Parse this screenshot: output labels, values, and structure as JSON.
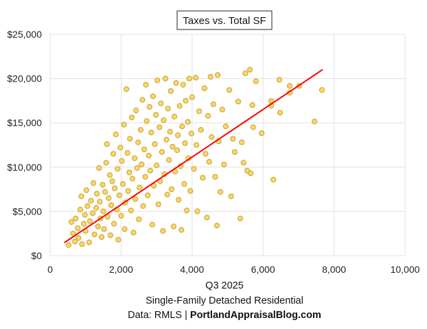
{
  "chart_data": {
    "type": "scatter",
    "title": "Taxes vs. Total SF",
    "footer": {
      "line1": "Q3 2025",
      "line2": "Single-Family Detached Residential",
      "line3_prefix": "Data: RMLS | ",
      "line3_bold": "PortlandAppraisalBlog.com"
    },
    "xlim": [
      0,
      10000
    ],
    "ylim": [
      0,
      25000
    ],
    "x_ticks": [
      0,
      2000,
      4000,
      6000,
      8000,
      10000
    ],
    "x_tick_labels": [
      "0",
      "2,000",
      "4,000",
      "6,000",
      "8,000",
      "10,000"
    ],
    "y_ticks": [
      0,
      5000,
      10000,
      15000,
      20000,
      25000
    ],
    "y_tick_labels": [
      "$0",
      "$5,000",
      "$10,000",
      "$15,000",
      "$20,000",
      "$25,000"
    ],
    "grid": true,
    "colors": {
      "marker_fill": "#f8d66f",
      "marker_stroke": "#c9a128",
      "trendline": "#ff0000",
      "grid": "#e0e0e0"
    },
    "trendline": {
      "type": "linear",
      "points": [
        [
          400,
          1470
        ],
        [
          7680,
          21020
        ]
      ]
    },
    "points": [
      [
        520,
        1200
      ],
      [
        600,
        3800
      ],
      [
        650,
        2500
      ],
      [
        700,
        1600
      ],
      [
        720,
        4200
      ],
      [
        780,
        3100
      ],
      [
        800,
        2000
      ],
      [
        850,
        5200
      ],
      [
        880,
        6700
      ],
      [
        900,
        1300
      ],
      [
        950,
        3600
      ],
      [
        980,
        4600
      ],
      [
        1000,
        2800
      ],
      [
        1020,
        7400
      ],
      [
        1050,
        5600
      ],
      [
        1100,
        1500
      ],
      [
        1120,
        3900
      ],
      [
        1150,
        6200
      ],
      [
        1200,
        4800
      ],
      [
        1220,
        8200
      ],
      [
        1250,
        2400
      ],
      [
        1300,
        5400
      ],
      [
        1320,
        7000
      ],
      [
        1350,
        3300
      ],
      [
        1380,
        9900
      ],
      [
        1400,
        6100
      ],
      [
        1420,
        4200
      ],
      [
        1450,
        2100
      ],
      [
        1480,
        8000
      ],
      [
        1500,
        5000
      ],
      [
        1520,
        3000
      ],
      [
        1550,
        7200
      ],
      [
        1580,
        10500
      ],
      [
        1600,
        12600
      ],
      [
        1620,
        4400
      ],
      [
        1650,
        6500
      ],
      [
        1680,
        9100
      ],
      [
        1700,
        2300
      ],
      [
        1720,
        5700
      ],
      [
        1750,
        8400
      ],
      [
        1780,
        11500
      ],
      [
        1800,
        3600
      ],
      [
        1820,
        7600
      ],
      [
        1850,
        13700
      ],
      [
        1880,
        5200
      ],
      [
        1900,
        9800
      ],
      [
        1920,
        1800
      ],
      [
        1950,
        6800
      ],
      [
        1980,
        12200
      ],
      [
        2000,
        4500
      ],
      [
        2020,
        10700
      ],
      [
        2050,
        8100
      ],
      [
        2080,
        14800
      ],
      [
        2100,
        3000
      ],
      [
        2120,
        6000
      ],
      [
        2150,
        18800
      ],
      [
        2180,
        11600
      ],
      [
        2200,
        7300
      ],
      [
        2230,
        9400
      ],
      [
        2250,
        13200
      ],
      [
        2280,
        5100
      ],
      [
        2300,
        15600
      ],
      [
        2320,
        8700
      ],
      [
        2350,
        2600
      ],
      [
        2380,
        11000
      ],
      [
        2400,
        6400
      ],
      [
        2420,
        16400
      ],
      [
        2450,
        9900
      ],
      [
        2480,
        12800
      ],
      [
        2500,
        4100
      ],
      [
        2520,
        7700
      ],
      [
        2550,
        14200
      ],
      [
        2580,
        10300
      ],
      [
        2600,
        17600
      ],
      [
        2620,
        5600
      ],
      [
        2650,
        12000
      ],
      [
        2680,
        8900
      ],
      [
        2700,
        19300
      ],
      [
        2720,
        15200
      ],
      [
        2750,
        6800
      ],
      [
        2780,
        11300
      ],
      [
        2800,
        16800
      ],
      [
        2820,
        9600
      ],
      [
        2850,
        13900
      ],
      [
        2880,
        3500
      ],
      [
        2900,
        18000
      ],
      [
        2920,
        7900
      ],
      [
        2950,
        12600
      ],
      [
        2980,
        15900
      ],
      [
        3000,
        10200
      ],
      [
        3020,
        19800
      ],
      [
        3050,
        5800
      ],
      [
        3080,
        14500
      ],
      [
        3100,
        8400
      ],
      [
        3120,
        17200
      ],
      [
        3150,
        11700
      ],
      [
        3180,
        2800
      ],
      [
        3200,
        15300
      ],
      [
        3220,
        9200
      ],
      [
        3250,
        20000
      ],
      [
        3280,
        13100
      ],
      [
        3300,
        6900
      ],
      [
        3320,
        16600
      ],
      [
        3350,
        10800
      ],
      [
        3380,
        14000
      ],
      [
        3400,
        18600
      ],
      [
        3420,
        7500
      ],
      [
        3450,
        12300
      ],
      [
        3480,
        3300
      ],
      [
        3500,
        15700
      ],
      [
        3520,
        9500
      ],
      [
        3550,
        19500
      ],
      [
        3580,
        11900
      ],
      [
        3600,
        13600
      ],
      [
        3620,
        6300
      ],
      [
        3650,
        16900
      ],
      [
        3680,
        10100
      ],
      [
        3700,
        2900
      ],
      [
        3720,
        14600
      ],
      [
        3750,
        19300
      ],
      [
        3780,
        8100
      ],
      [
        3800,
        12700
      ],
      [
        3820,
        17500
      ],
      [
        3850,
        5100
      ],
      [
        3880,
        15100
      ],
      [
        3900,
        11000
      ],
      [
        3920,
        20000
      ],
      [
        3950,
        7300
      ],
      [
        3980,
        13800
      ],
      [
        4000,
        17900
      ],
      [
        4050,
        9800
      ],
      [
        4100,
        20100
      ],
      [
        4120,
        12500
      ],
      [
        4150,
        5000
      ],
      [
        4200,
        16300
      ],
      [
        4250,
        14200
      ],
      [
        4300,
        8800
      ],
      [
        4350,
        18900
      ],
      [
        4380,
        11500
      ],
      [
        4420,
        4300
      ],
      [
        4450,
        15800
      ],
      [
        4480,
        10600
      ],
      [
        4520,
        20200
      ],
      [
        4550,
        13400
      ],
      [
        4600,
        17100
      ],
      [
        4650,
        8900
      ],
      [
        4700,
        3400
      ],
      [
        4720,
        20400
      ],
      [
        4750,
        12900
      ],
      [
        4800,
        7200
      ],
      [
        4850,
        16500
      ],
      [
        4900,
        10300
      ],
      [
        4950,
        14600
      ],
      [
        5050,
        18700
      ],
      [
        5100,
        6700
      ],
      [
        5150,
        13200
      ],
      [
        5200,
        11700
      ],
      [
        5300,
        17400
      ],
      [
        5360,
        4200
      ],
      [
        5400,
        12800
      ],
      [
        5450,
        10500
      ],
      [
        5500,
        20600
      ],
      [
        5550,
        9600
      ],
      [
        5630,
        21000
      ],
      [
        5650,
        9300
      ],
      [
        5700,
        17000
      ],
      [
        5720,
        14500
      ],
      [
        5800,
        19700
      ],
      [
        5960,
        13830
      ],
      [
        6230,
        17470
      ],
      [
        6230,
        16930
      ],
      [
        6290,
        8580
      ],
      [
        6460,
        19860
      ],
      [
        6480,
        16150
      ],
      [
        6750,
        19170
      ],
      [
        6750,
        18390
      ],
      [
        7020,
        19170
      ],
      [
        7450,
        15150
      ],
      [
        7660,
        18700
      ]
    ]
  }
}
